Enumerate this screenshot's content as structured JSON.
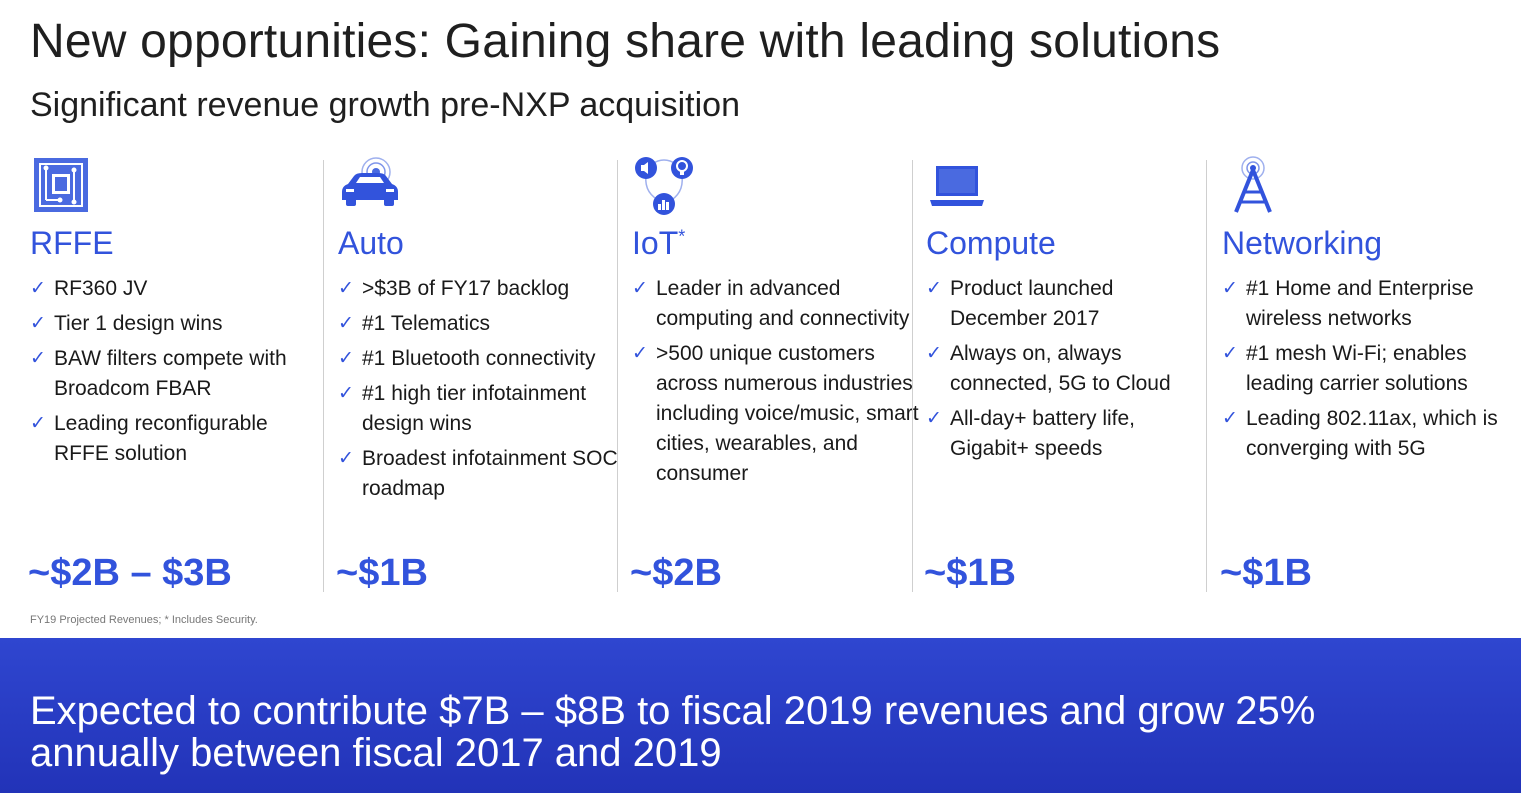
{
  "title": "New opportunities: Gaining share with leading solutions",
  "subtitle": "Significant revenue growth pre-NXP acquisition",
  "colors": {
    "accent": "#3253dc",
    "banner": "#2a3ec8",
    "text": "#1a1a1a"
  },
  "check_glyph": "✓",
  "columns": [
    {
      "icon": "chip-icon",
      "heading": "RFFE",
      "items": [
        "RF360 JV",
        "Tier 1 design wins",
        "BAW filters compete with Broadcom FBAR",
        "Leading reconfigurable RFFE solution"
      ],
      "value": "~$2B – $3B"
    },
    {
      "icon": "car-icon",
      "heading": "Auto",
      "items": [
        ">$3B of FY17 backlog",
        "#1 Telematics",
        "#1 Bluetooth connectivity",
        "#1 high tier infotainment design wins",
        "Broadest infotainment SOC roadmap"
      ],
      "value": "~$1B"
    },
    {
      "icon": "iot-devices-icon",
      "heading": "IoT",
      "heading_sup": "*",
      "items": [
        "Leader in advanced computing and connectivity",
        ">500 unique customers across numerous industries including voice/music, smart cities, wearables, and consumer"
      ],
      "value": "~$2B"
    },
    {
      "icon": "laptop-icon",
      "heading": "Compute",
      "items": [
        "Product launched December 2017",
        "Always on, always connected, 5G to Cloud",
        "All-day+ battery life, Gigabit+ speeds"
      ],
      "value": "~$1B"
    },
    {
      "icon": "antenna-tower-icon",
      "heading": "Networking",
      "items": [
        "#1 Home and Enterprise wireless networks",
        "#1 mesh Wi-Fi; enables leading carrier solutions",
        "Leading 802.11ax, which is converging with 5G"
      ],
      "value": "~$1B"
    }
  ],
  "footnote": "FY19 Projected Revenues; * Includes Security.",
  "banner": {
    "text": "Expected to contribute $7B – $8B to fiscal 2019 revenues and grow 25% annually between fiscal 2017 and 2019"
  }
}
